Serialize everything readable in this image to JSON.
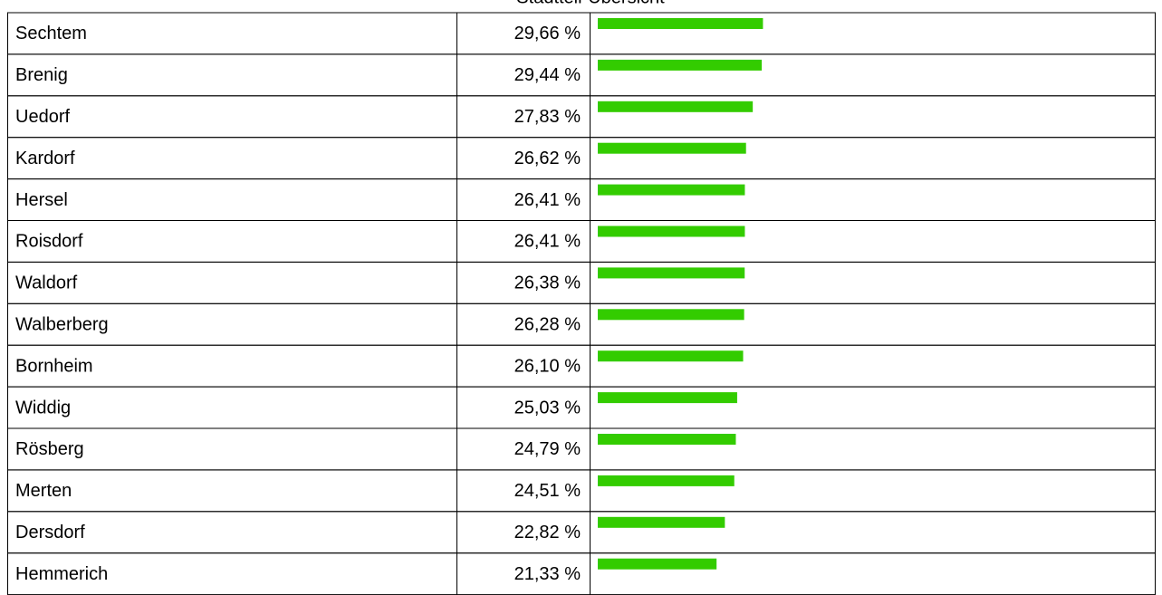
{
  "chart_data": {
    "type": "bar",
    "orientation": "horizontal",
    "title": "Stadtteil-Übersicht",
    "categories": [
      "Sechtem",
      "Brenig",
      "Uedorf",
      "Kardorf",
      "Hersel",
      "Roisdorf",
      "Waldorf",
      "Walberberg",
      "Bornheim",
      "Widdig",
      "Rösberg",
      "Merten",
      "Dersdorf",
      "Hemmerich"
    ],
    "values": [
      29.66,
      29.44,
      27.83,
      26.62,
      26.41,
      26.41,
      26.38,
      26.28,
      26.1,
      25.03,
      24.79,
      24.51,
      22.82,
      21.33
    ],
    "value_labels": [
      "29,66 %",
      "29,44 %",
      "27,83 %",
      "26,62 %",
      "26,41 %",
      "26,41 %",
      "26,38 %",
      "26,28 %",
      "26,10 %",
      "25,03 %",
      "24,79 %",
      "24,51 %",
      "22,82 %",
      "21,33 %"
    ],
    "color": "#33cc00"
  }
}
